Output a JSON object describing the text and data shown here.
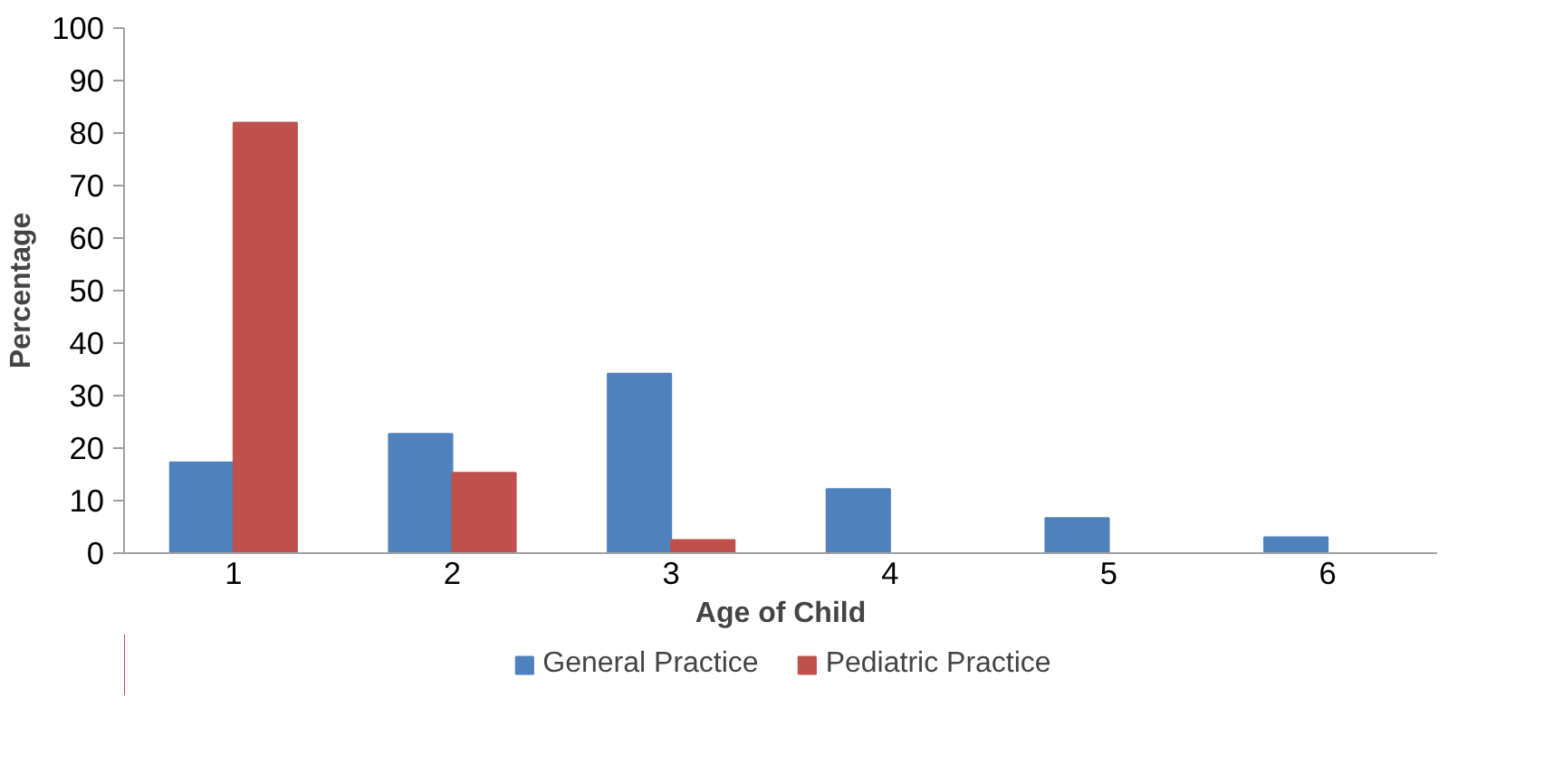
{
  "chart_data": {
    "type": "bar",
    "xlabel": "Age of Child",
    "ylabel": "Percentage",
    "categories": [
      "1",
      "2",
      "3",
      "4",
      "5",
      "6"
    ],
    "series": [
      {
        "name": "General Practice",
        "color": "#4f81bd",
        "values": [
          17.3,
          22.7,
          34.2,
          12.2,
          6.7,
          3
        ]
      },
      {
        "name": "Pediatric Practice",
        "color": "#c0504d",
        "values": [
          82,
          15.3,
          2.5,
          0,
          0,
          0
        ]
      }
    ],
    "ylim": [
      0,
      100
    ],
    "yticks": [
      0,
      10,
      20,
      30,
      40,
      50,
      60,
      70,
      80,
      90,
      100
    ],
    "grid": false,
    "legend": "bottom"
  }
}
